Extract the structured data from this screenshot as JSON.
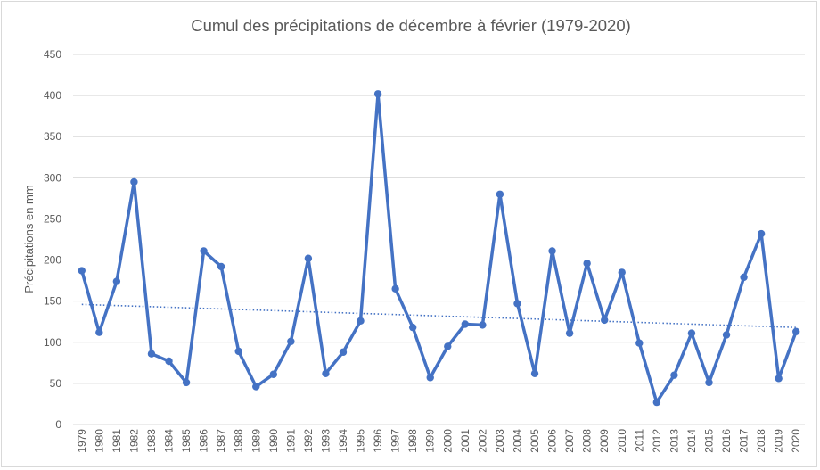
{
  "chart_data": {
    "type": "line",
    "title": "Cumul des précipitations de décembre à février (1979-2020)",
    "xlabel": "",
    "ylabel": "Précipitations en mm",
    "ylim": [
      0,
      450
    ],
    "yticks": [
      0,
      50,
      100,
      150,
      200,
      250,
      300,
      350,
      400,
      450
    ],
    "grid": true,
    "legend": "none",
    "categories": [
      "1979",
      "1980",
      "1981",
      "1982",
      "1983",
      "1984",
      "1985",
      "1986",
      "1987",
      "1988",
      "1989",
      "1990",
      "1991",
      "1992",
      "1993",
      "1994",
      "1995",
      "1996",
      "1997",
      "1998",
      "1999",
      "2000",
      "2001",
      "2002",
      "2003",
      "2004",
      "2005",
      "2006",
      "2007",
      "2008",
      "2009",
      "2010",
      "2011",
      "2012",
      "2013",
      "2014",
      "2015",
      "2016",
      "2017",
      "2018",
      "2019",
      "2020"
    ],
    "series": [
      {
        "values": [
          187,
          112,
          174,
          295,
          86,
          77,
          51,
          211,
          192,
          89,
          46,
          61,
          101,
          202,
          62,
          88,
          126,
          402,
          165,
          118,
          57,
          95,
          122,
          121,
          280,
          147,
          62,
          211,
          111,
          196,
          127,
          185,
          99,
          27,
          60,
          111,
          51,
          109,
          179,
          232,
          56,
          113
        ],
        "color": "#4472c4"
      }
    ],
    "trendline": {
      "type": "linear",
      "style": "dotted",
      "color": "#4472c4",
      "start": 146,
      "end": 118
    }
  }
}
